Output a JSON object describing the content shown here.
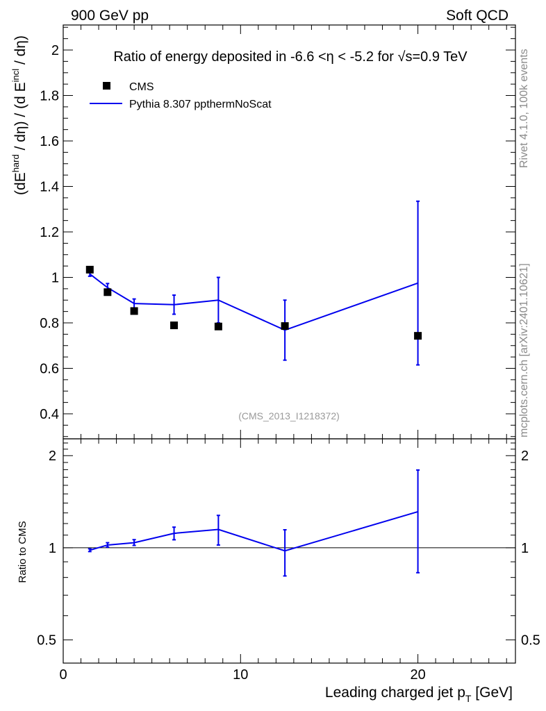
{
  "header": {
    "left": "900 GeV pp",
    "right": "Soft QCD"
  },
  "side_labels": {
    "rivet": "Rivet 4.1.0,  100k events",
    "mcplots": "mcplots.cern.ch [arXiv:2401.10621]"
  },
  "watermark": "(CMS_2013_I1218372)",
  "colors": {
    "data": "#000000",
    "mc": "#0000ee",
    "side_text": "#8a8a8a"
  },
  "chart_data": [
    {
      "type": "scatter",
      "title": "Ratio of energy deposited in -6.6 <η < -5.2 for √s=0.9 TeV",
      "ylabel": "(dE^hard / dη) / (d E^incl / dη)",
      "xlim": [
        0,
        25.5
      ],
      "ylim": [
        0.29,
        2.11
      ],
      "yticks": [
        0.4,
        0.6,
        0.8,
        1,
        1.2,
        1.4,
        1.6,
        1.8,
        2
      ],
      "ytick_labels": [
        "0.4",
        "0.6",
        "0.8",
        "1",
        "1.2",
        "1.4",
        "1.6",
        "1.8",
        "2"
      ],
      "legend": {
        "position": "top-left",
        "entries": [
          "CMS",
          "Pythia 8.307 ppthermNoScat"
        ]
      },
      "series": [
        {
          "name": "CMS",
          "style": "markers",
          "x": [
            1.5,
            2.5,
            4.0,
            6.25,
            8.75,
            12.5,
            20.0
          ],
          "y": [
            1.034,
            0.935,
            0.852,
            0.789,
            0.784,
            0.786,
            0.743
          ]
        },
        {
          "name": "Pythia 8.307 ppthermNoScat",
          "style": "line",
          "x": [
            1.5,
            2.5,
            4.0,
            6.25,
            8.75,
            12.5,
            20.0
          ],
          "y": [
            1.015,
            0.955,
            0.885,
            0.88,
            0.9,
            0.768,
            0.975
          ],
          "err": [
            0.01,
            0.018,
            0.02,
            0.042,
            0.1,
            0.132,
            0.36
          ]
        }
      ]
    },
    {
      "type": "line",
      "title": "",
      "ylabel": "Ratio to CMS",
      "xlabel": "Leading charged jet p_T [GeV]",
      "xlim": [
        0,
        25.5
      ],
      "ylim": [
        0.42,
        2.27
      ],
      "yscale": "log",
      "yticks": [
        0.5,
        1,
        2
      ],
      "ytick_labels": [
        "0.5",
        "1",
        "2"
      ],
      "xticks": [
        0,
        10,
        20
      ],
      "xtick_labels": [
        "0",
        "10",
        "20"
      ],
      "reference_line": 1,
      "series": [
        {
          "name": "Pythia 8.307 ppthermNoScat / CMS",
          "style": "line",
          "x": [
            1.5,
            2.5,
            4.0,
            6.25,
            8.75,
            12.5,
            20.0
          ],
          "y": [
            0.982,
            1.021,
            1.039,
            1.115,
            1.148,
            0.977,
            1.312
          ],
          "ylo": [
            0.972,
            1.005,
            1.018,
            1.062,
            1.021,
            0.809,
            0.829
          ],
          "yhi": [
            0.992,
            1.039,
            1.063,
            1.168,
            1.276,
            1.145,
            1.795
          ]
        }
      ]
    }
  ]
}
